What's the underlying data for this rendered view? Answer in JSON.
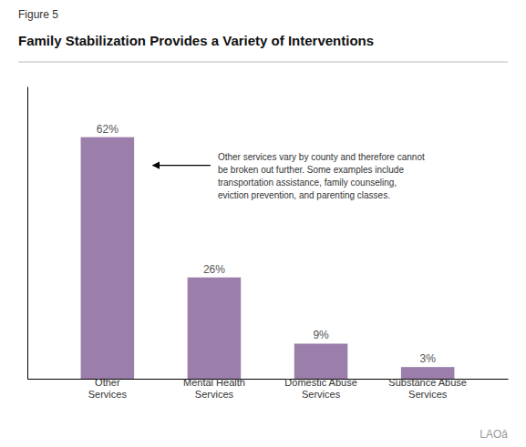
{
  "chart_data": {
    "type": "bar",
    "title": "Family Stabilization Provides a Variety of Interventions",
    "annotations": [
      "Figure 5",
      "Other services vary by county and therefore cannot\nbe broken out further. Some examples include\ntransportation assistance, family counseling,\neviction prevention, and parenting classes.",
      "LAOâ"
    ],
    "categories": [
      "Other\nServices",
      "Mental Health\nServices",
      "Domestic Abuse\nServices",
      "Substance Abuse\nServices"
    ],
    "values": [
      62,
      26,
      9,
      3
    ],
    "value_labels": [
      "62%",
      "26%",
      "9%",
      "3%"
    ],
    "data_labels": true,
    "color": "#9b7faa",
    "ylim": [
      0,
      75
    ],
    "yticks": [],
    "tick_labels": "x",
    "grid": false
  }
}
